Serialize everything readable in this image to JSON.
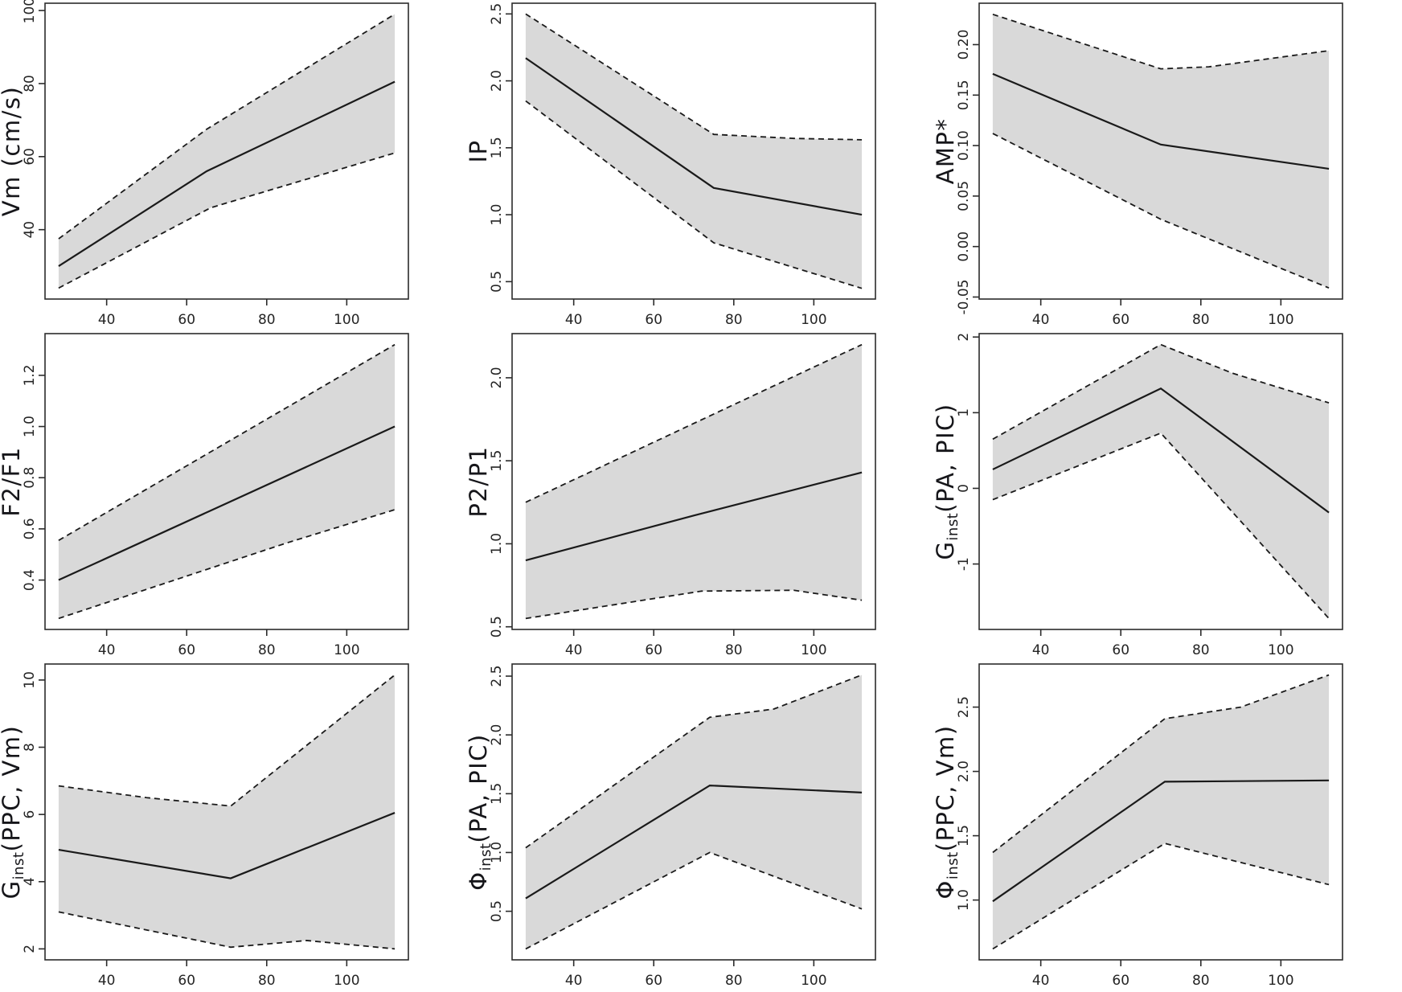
{
  "figure": {
    "description": "3x3 grid of piecewise-linear regression plots with shaded 95% confidence bands (dashed boundaries) over solid mean lines",
    "rows": 3,
    "cols": 3,
    "background": "#ffffff"
  },
  "colors": {
    "band_fill": "#d9d9d9",
    "mean_line": "#1a1a1a",
    "ci_line": "#1a1a1a",
    "box_stroke": "#2b2b2b",
    "tick_stroke": "#2b2b2b",
    "tick_text": "#242424",
    "label_text": "#16161a"
  },
  "chart_data": [
    {
      "type": "line",
      "name": "vm",
      "ylabel": "Vm (cm/s)",
      "ylabel_parts": [
        {
          "t": "Vm (cm/s)"
        }
      ],
      "x_ticks": [
        40,
        60,
        80,
        100
      ],
      "x_tick_labels": [
        "40",
        "60",
        "80",
        "100"
      ],
      "x_domain": [
        24.6,
        115.4
      ],
      "y_domain": [
        21,
        102
      ],
      "y_ticks": [
        {
          "v": 40,
          "label": "40"
        },
        {
          "v": 60,
          "label": "60"
        },
        {
          "v": 80,
          "label": "80"
        },
        {
          "v": 100,
          "label": "100"
        }
      ],
      "grid": false,
      "legend": "none",
      "series": [
        {
          "name": "mean",
          "style": "solid",
          "x": [
            28,
            65,
            112
          ],
          "y": [
            30,
            56,
            80.5
          ]
        },
        {
          "name": "upper_ci",
          "style": "dashed",
          "x": [
            28,
            65,
            112
          ],
          "y": [
            37.5,
            67.5,
            99
          ]
        },
        {
          "name": "lower_ci",
          "style": "dashed",
          "x": [
            28,
            66,
            112
          ],
          "y": [
            24,
            46,
            61
          ]
        }
      ]
    },
    {
      "type": "line",
      "name": "ip",
      "ylabel": "IP",
      "ylabel_parts": [
        {
          "t": "IP"
        }
      ],
      "x_ticks": [
        40,
        60,
        80,
        100
      ],
      "x_tick_labels": [
        "40",
        "60",
        "80",
        "100"
      ],
      "x_domain": [
        24.6,
        115.4
      ],
      "y_domain": [
        0.37,
        2.58
      ],
      "y_ticks": [
        {
          "v": 0.5,
          "label": "0.5"
        },
        {
          "v": 1.0,
          "label": "1.0"
        },
        {
          "v": 1.5,
          "label": "1.5"
        },
        {
          "v": 2.0,
          "label": "2.0"
        },
        {
          "v": 2.5,
          "label": "2.5"
        }
      ],
      "grid": false,
      "legend": "none",
      "series": [
        {
          "name": "mean",
          "style": "solid",
          "x": [
            28,
            75,
            112
          ],
          "y": [
            2.17,
            1.2,
            1.0
          ]
        },
        {
          "name": "upper_ci",
          "style": "dashed",
          "x": [
            28,
            75,
            95,
            112
          ],
          "y": [
            2.5,
            1.6,
            1.57,
            1.56
          ]
        },
        {
          "name": "lower_ci",
          "style": "dashed",
          "x": [
            28,
            75,
            112
          ],
          "y": [
            1.85,
            0.79,
            0.45
          ]
        }
      ]
    },
    {
      "type": "line",
      "name": "amp",
      "ylabel": "AMP*",
      "ylabel_parts": [
        {
          "t": "AMP*"
        }
      ],
      "x_ticks": [
        40,
        60,
        80,
        100
      ],
      "x_tick_labels": [
        "40",
        "60",
        "80",
        "100"
      ],
      "x_domain": [
        24.6,
        115.4
      ],
      "y_domain": [
        -0.052,
        0.241
      ],
      "y_ticks": [
        {
          "v": -0.05,
          "label": "-0.05"
        },
        {
          "v": 0.0,
          "label": "0.00"
        },
        {
          "v": 0.05,
          "label": "0.05"
        },
        {
          "v": 0.1,
          "label": "0.10"
        },
        {
          "v": 0.15,
          "label": "0.15"
        },
        {
          "v": 0.2,
          "label": "0.20"
        }
      ],
      "grid": false,
      "legend": "none",
      "series": [
        {
          "name": "mean",
          "style": "solid",
          "x": [
            28,
            70,
            112
          ],
          "y": [
            0.171,
            0.101,
            0.077
          ]
        },
        {
          "name": "upper_ci",
          "style": "dashed",
          "x": [
            28,
            70,
            82,
            112
          ],
          "y": [
            0.23,
            0.176,
            0.178,
            0.194
          ]
        },
        {
          "name": "lower_ci",
          "style": "dashed",
          "x": [
            28,
            70,
            112
          ],
          "y": [
            0.112,
            0.027,
            -0.041
          ]
        }
      ]
    },
    {
      "type": "line",
      "name": "f2f1",
      "ylabel": "F2/F1",
      "ylabel_parts": [
        {
          "t": "F2/F1"
        }
      ],
      "x_ticks": [
        40,
        60,
        80,
        100
      ],
      "x_tick_labels": [
        "40",
        "60",
        "80",
        "100"
      ],
      "x_domain": [
        24.6,
        115.4
      ],
      "y_domain": [
        0.207,
        1.363
      ],
      "y_ticks": [
        {
          "v": 0.4,
          "label": "0.4"
        },
        {
          "v": 0.6,
          "label": "0.6"
        },
        {
          "v": 0.8,
          "label": "0.8"
        },
        {
          "v": 1.0,
          "label": "1.0"
        },
        {
          "v": 1.2,
          "label": "1.2"
        }
      ],
      "grid": false,
      "legend": "none",
      "series": [
        {
          "name": "mean",
          "style": "solid",
          "x": [
            28,
            112
          ],
          "y": [
            0.4,
            1.0
          ]
        },
        {
          "name": "upper_ci",
          "style": "dashed",
          "x": [
            28,
            112
          ],
          "y": [
            0.555,
            1.32
          ]
        },
        {
          "name": "lower_ci",
          "style": "dashed",
          "x": [
            28,
            85,
            112
          ],
          "y": [
            0.25,
            0.545,
            0.675
          ]
        }
      ]
    },
    {
      "type": "line",
      "name": "p2p1",
      "ylabel": "P2/P1",
      "ylabel_parts": [
        {
          "t": "P2/P1"
        }
      ],
      "x_ticks": [
        40,
        60,
        80,
        100
      ],
      "x_tick_labels": [
        "40",
        "60",
        "80",
        "100"
      ],
      "x_domain": [
        24.6,
        115.4
      ],
      "y_domain": [
        0.484,
        2.266
      ],
      "y_ticks": [
        {
          "v": 0.5,
          "label": "0.5"
        },
        {
          "v": 1.0,
          "label": "1.0"
        },
        {
          "v": 1.5,
          "label": "1.5"
        },
        {
          "v": 2.0,
          "label": "2.0"
        }
      ],
      "grid": false,
      "legend": "none",
      "series": [
        {
          "name": "mean",
          "style": "solid",
          "x": [
            28,
            70,
            112
          ],
          "y": [
            0.9,
            1.17,
            1.43
          ]
        },
        {
          "name": "upper_ci",
          "style": "dashed",
          "x": [
            28,
            112
          ],
          "y": [
            1.25,
            2.2
          ]
        },
        {
          "name": "lower_ci",
          "style": "dashed",
          "x": [
            28,
            72,
            95,
            112
          ],
          "y": [
            0.55,
            0.715,
            0.72,
            0.66
          ]
        }
      ]
    },
    {
      "type": "line",
      "name": "g_pa_pic",
      "ylabel": "G_inst(PA, PIC)",
      "ylabel_parts": [
        {
          "t": "G"
        },
        {
          "t": "inst",
          "sub": true
        },
        {
          "t": "(PA, PIC)"
        }
      ],
      "x_ticks": [
        40,
        60,
        80,
        100
      ],
      "x_tick_labels": [
        "40",
        "60",
        "80",
        "100"
      ],
      "x_domain": [
        24.6,
        115.4
      ],
      "y_domain": [
        -1.865,
        2.045
      ],
      "y_ticks": [
        {
          "v": -1,
          "label": "-1"
        },
        {
          "v": 0,
          "label": "0"
        },
        {
          "v": 1,
          "label": "1"
        },
        {
          "v": 2,
          "label": "2"
        }
      ],
      "grid": false,
      "legend": "none",
      "series": [
        {
          "name": "mean",
          "style": "solid",
          "x": [
            28,
            70,
            112
          ],
          "y": [
            0.25,
            1.32,
            -0.32
          ]
        },
        {
          "name": "upper_ci",
          "style": "dashed",
          "x": [
            28,
            70,
            88,
            112
          ],
          "y": [
            0.65,
            1.9,
            1.52,
            1.13
          ]
        },
        {
          "name": "lower_ci",
          "style": "dashed",
          "x": [
            28,
            70,
            112
          ],
          "y": [
            -0.15,
            0.73,
            -1.72
          ]
        }
      ]
    },
    {
      "type": "line",
      "name": "g_ppc_vm",
      "ylabel": "G_inst(PPC, Vm)",
      "ylabel_parts": [
        {
          "t": "G"
        },
        {
          "t": "inst",
          "sub": true
        },
        {
          "t": "(PPC, Vm)"
        }
      ],
      "x_ticks": [
        40,
        60,
        80,
        100
      ],
      "x_tick_labels": [
        "40",
        "60",
        "80",
        "100"
      ],
      "x_domain": [
        24.6,
        115.4
      ],
      "y_domain": [
        1.674,
        10.476
      ],
      "y_ticks": [
        {
          "v": 2,
          "label": "2"
        },
        {
          "v": 4,
          "label": "4"
        },
        {
          "v": 6,
          "label": "6"
        },
        {
          "v": 8,
          "label": "8"
        },
        {
          "v": 10,
          "label": "10"
        }
      ],
      "grid": false,
      "legend": "none",
      "series": [
        {
          "name": "mean",
          "style": "solid",
          "x": [
            28,
            71,
            112
          ],
          "y": [
            4.95,
            4.1,
            6.05
          ]
        },
        {
          "name": "upper_ci",
          "style": "dashed",
          "x": [
            28,
            50,
            71,
            112
          ],
          "y": [
            6.85,
            6.5,
            6.25,
            10.15
          ]
        },
        {
          "name": "lower_ci",
          "style": "dashed",
          "x": [
            28,
            71,
            90,
            112
          ],
          "y": [
            3.1,
            2.05,
            2.25,
            2.0
          ]
        }
      ]
    },
    {
      "type": "line",
      "name": "phi_pa_pic",
      "ylabel": "Φ_inst(PA, PIC)",
      "ylabel_parts": [
        {
          "t": "Φ"
        },
        {
          "t": "inst",
          "sub": true
        },
        {
          "t": "(PA, PIC)"
        }
      ],
      "x_ticks": [
        40,
        60,
        80,
        100
      ],
      "x_tick_labels": [
        "40",
        "60",
        "80",
        "100"
      ],
      "x_domain": [
        24.6,
        115.4
      ],
      "y_domain": [
        0.087,
        2.603
      ],
      "y_ticks": [
        {
          "v": 0.5,
          "label": "0.5"
        },
        {
          "v": 1.0,
          "label": "1.0"
        },
        {
          "v": 1.5,
          "label": "1.5"
        },
        {
          "v": 2.0,
          "label": "2.0"
        },
        {
          "v": 2.5,
          "label": "2.5"
        }
      ],
      "grid": false,
      "legend": "none",
      "series": [
        {
          "name": "mean",
          "style": "solid",
          "x": [
            28,
            74,
            112
          ],
          "y": [
            0.61,
            1.57,
            1.51
          ]
        },
        {
          "name": "upper_ci",
          "style": "dashed",
          "x": [
            28,
            74,
            90,
            112
          ],
          "y": [
            1.04,
            2.15,
            2.22,
            2.51
          ]
        },
        {
          "name": "lower_ci",
          "style": "dashed",
          "x": [
            28,
            74,
            112
          ],
          "y": [
            0.18,
            1.0,
            0.52
          ]
        }
      ]
    },
    {
      "type": "line",
      "name": "phi_ppc_vm",
      "ylabel": "Φ_inst(PPC, Vm)",
      "ylabel_parts": [
        {
          "t": "Φ"
        },
        {
          "t": "inst",
          "sub": true
        },
        {
          "t": "(PPC, Vm)"
        }
      ],
      "x_ticks": [
        40,
        60,
        80,
        100
      ],
      "x_tick_labels": [
        "40",
        "60",
        "80",
        "100"
      ],
      "x_domain": [
        24.6,
        115.4
      ],
      "y_domain": [
        0.535,
        2.835
      ],
      "y_ticks": [
        {
          "v": 1.0,
          "label": "1.0"
        },
        {
          "v": 1.5,
          "label": "1.5"
        },
        {
          "v": 2.0,
          "label": "2.0"
        },
        {
          "v": 2.5,
          "label": "2.5"
        }
      ],
      "grid": false,
      "legend": "none",
      "series": [
        {
          "name": "mean",
          "style": "solid",
          "x": [
            28,
            71,
            112
          ],
          "y": [
            0.99,
            1.92,
            1.93
          ]
        },
        {
          "name": "upper_ci",
          "style": "dashed",
          "x": [
            28,
            71,
            90,
            112
          ],
          "y": [
            1.37,
            2.41,
            2.5,
            2.75
          ]
        },
        {
          "name": "lower_ci",
          "style": "dashed",
          "x": [
            28,
            71,
            112
          ],
          "y": [
            0.62,
            1.44,
            1.12
          ]
        }
      ]
    }
  ]
}
